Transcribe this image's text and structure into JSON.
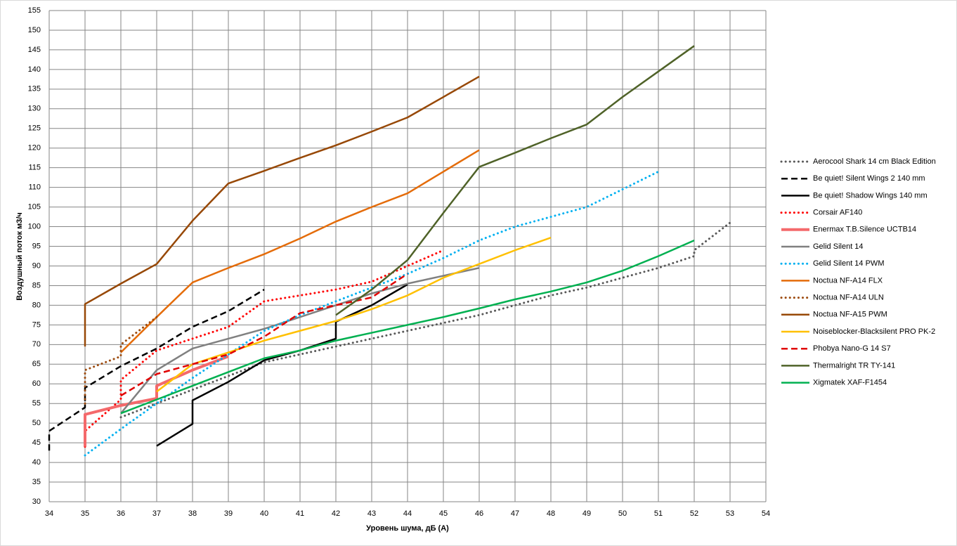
{
  "chart_data": {
    "type": "line",
    "xlabel": "Уровень шума, дБ (А)",
    "ylabel": "Воздушный поток м3/ч",
    "xlim": [
      34,
      54
    ],
    "xticks": [
      34,
      35,
      36,
      37,
      38,
      39,
      40,
      41,
      42,
      43,
      44,
      45,
      46,
      47,
      48,
      49,
      50,
      51,
      52,
      53,
      54
    ],
    "ylim": [
      30,
      155
    ],
    "yticks": [
      30,
      35,
      40,
      45,
      50,
      55,
      60,
      65,
      70,
      75,
      80,
      85,
      90,
      95,
      100,
      105,
      110,
      115,
      120,
      125,
      130,
      135,
      140,
      145,
      150,
      155
    ],
    "grid": true,
    "legend": "right",
    "series": [
      {
        "name": "Aerocool Shark 14 cm Black Edition",
        "color": "#595959",
        "dash": "dotted",
        "x": [
          36,
          37,
          38,
          39,
          40,
          41,
          42,
          43,
          44,
          45,
          46,
          47,
          48,
          49,
          50,
          51,
          52,
          52,
          53
        ],
        "values": [
          51.5,
          55,
          58.5,
          62,
          65.5,
          67.5,
          69.5,
          71.5,
          73.5,
          75.5,
          77.5,
          80,
          82.5,
          84.5,
          87,
          89.5,
          92.5,
          94,
          101
        ]
      },
      {
        "name": "Be quiet! Silent Wings 2 140 mm",
        "color": "#000000",
        "dash": "dashed",
        "x": [
          34,
          34,
          35,
          35,
          36,
          37,
          38,
          39,
          40
        ],
        "values": [
          43,
          48,
          54,
          59,
          64.5,
          69,
          74.5,
          78.5,
          84
        ]
      },
      {
        "name": "Be quiet! Shadow  Wings 140 mm",
        "color": "#000000",
        "dash": "solid",
        "x": [
          37,
          38,
          38,
          39,
          40,
          41,
          42,
          42,
          43,
          44
        ],
        "values": [
          44.2,
          49.8,
          55.8,
          60.5,
          66,
          68.5,
          71.5,
          75.8,
          80,
          85.3
        ]
      },
      {
        "name": "Corsair AF140",
        "color": "#ff0000",
        "dash": "dotted",
        "x": [
          35,
          35,
          36,
          36,
          37,
          38,
          39,
          40,
          41,
          42,
          43,
          44,
          45
        ],
        "values": [
          44,
          48,
          56,
          61,
          68.5,
          71.5,
          74.5,
          81,
          82.5,
          84,
          86,
          90,
          94
        ]
      },
      {
        "name": "Enermax T.B.Silence UCTB14",
        "color": "#f4696b",
        "dash": "thick",
        "x": [
          35,
          35,
          36,
          37,
          37,
          38,
          39
        ],
        "values": [
          44,
          52.2,
          54.5,
          56.3,
          59.5,
          63.5,
          67
        ]
      },
      {
        "name": "Gelid Silent 14",
        "color": "#808080",
        "dash": "solid",
        "x": [
          36,
          37,
          38,
          39,
          40,
          41,
          42,
          43,
          44,
          45,
          46
        ],
        "values": [
          52.5,
          63.5,
          69,
          71.5,
          74,
          77,
          80,
          83,
          85.5,
          87.5,
          89.5
        ]
      },
      {
        "name": "Gelid Silent 14 PWM",
        "color": "#00b0f0",
        "dash": "dotted",
        "x": [
          35,
          36,
          37,
          38,
          39,
          40,
          41,
          42,
          43,
          44,
          45,
          46,
          47,
          48,
          49,
          50,
          51
        ],
        "values": [
          41.8,
          48.5,
          55,
          61.5,
          67.5,
          73.5,
          77.5,
          81,
          84.5,
          88,
          92,
          96.5,
          100,
          102.5,
          105,
          109.5,
          114
        ]
      },
      {
        "name": "Noctua NF-A14 FLX",
        "color": "#e46c0a",
        "dash": "solid",
        "x": [
          36,
          37,
          38,
          39,
          40,
          41,
          42,
          43,
          44,
          45,
          46
        ],
        "values": [
          68,
          77,
          85.8,
          89.5,
          93,
          97,
          101.3,
          105,
          108.5,
          114,
          119.5
        ]
      },
      {
        "name": "Noctua NF-A14 ULN",
        "color": "#9c4a0e",
        "dash": "dotted",
        "x": [
          35,
          35,
          35,
          36,
          36,
          37
        ],
        "values": [
          55,
          59,
          63.5,
          67,
          70,
          77
        ]
      },
      {
        "name": "Noctua NF-A15 PWM",
        "color": "#974806",
        "dash": "solid",
        "x": [
          35,
          35,
          36,
          37,
          38,
          39,
          40,
          41,
          42,
          43,
          44,
          45,
          46
        ],
        "values": [
          69.5,
          80.3,
          85.5,
          90.5,
          101.5,
          111,
          114.2,
          117.5,
          120.7,
          124.2,
          127.8,
          133,
          138.2
        ]
      },
      {
        "name": "Noiseblocker-Blacksilent PRO PK-2",
        "color": "#ffc000",
        "dash": "solid",
        "x": [
          37,
          38,
          39,
          40,
          41,
          42,
          43,
          44,
          45,
          46,
          47,
          48
        ],
        "values": [
          58,
          65,
          68,
          71,
          73.5,
          76,
          79,
          82.5,
          87,
          90.5,
          94,
          97.2
        ]
      },
      {
        "name": "Phobya Nano-G  14 S7",
        "color": "#e00000",
        "dash": "dashed",
        "x": [
          36,
          37,
          38,
          39,
          40,
          41,
          42,
          43,
          44
        ],
        "values": [
          57,
          62.5,
          65,
          67.5,
          72,
          78,
          80,
          82,
          88
        ]
      },
      {
        "name": "Thermalright TR TY-141",
        "color": "#4f6228",
        "dash": "solid",
        "x": [
          42,
          43,
          44,
          45,
          46,
          47,
          48,
          49,
          50,
          51,
          52
        ],
        "values": [
          77.5,
          84,
          91.5,
          103.5,
          115.2,
          118.8,
          122.5,
          126,
          133,
          139.5,
          146
        ]
      },
      {
        "name": "Xigmatek XAF-F1454",
        "color": "#00b050",
        "dash": "solid",
        "x": [
          36,
          37,
          38,
          39,
          40,
          41,
          42,
          43,
          44,
          45,
          46,
          47,
          48,
          49,
          50,
          51,
          52
        ],
        "values": [
          52.5,
          56,
          59.5,
          63,
          66.5,
          68.5,
          71,
          73,
          75,
          77,
          79.2,
          81.5,
          83.5,
          85.8,
          88.8,
          92.5,
          96.5
        ]
      }
    ]
  }
}
